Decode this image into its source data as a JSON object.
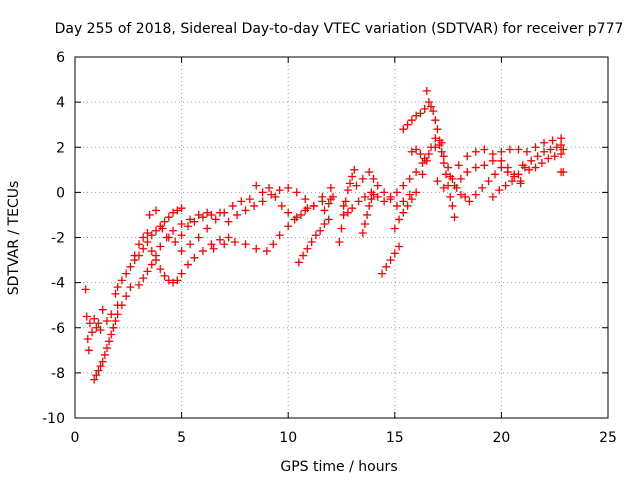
{
  "chart_data": {
    "type": "scatter",
    "title": "Day 255 of 2018, Sidereal Day-to-day VTEC variation (SDTVAR) for receiver p777",
    "xlabel": "GPS time / hours",
    "ylabel": "SDTVAR / TECUs",
    "xlim": [
      0,
      25
    ],
    "ylim": [
      -10,
      6
    ],
    "xticks": [
      0,
      5,
      10,
      15,
      20,
      25
    ],
    "yticks": [
      -10,
      -8,
      -6,
      -4,
      -2,
      0,
      2,
      4,
      6
    ],
    "grid": true,
    "legend": "none",
    "marker": "plus",
    "color": "#ff0000",
    "series": [
      {
        "points": [
          [
            0.5,
            -4.3
          ],
          [
            0.55,
            -5.5
          ],
          [
            0.6,
            -6.5
          ],
          [
            0.65,
            -7.0
          ],
          [
            0.7,
            -5.8
          ],
          [
            0.8,
            -6.2
          ],
          [
            0.9,
            -5.6
          ],
          [
            1.0,
            -6.0
          ],
          [
            1.1,
            -5.8
          ],
          [
            1.2,
            -6.1
          ],
          [
            1.3,
            -5.2
          ],
          [
            1.5,
            -5.7
          ],
          [
            1.7,
            -5.4
          ],
          [
            1.8,
            -6.0
          ],
          [
            2.0,
            -5.0
          ],
          [
            0.9,
            -8.3
          ],
          [
            1.0,
            -8.1
          ],
          [
            1.1,
            -7.9
          ],
          [
            1.2,
            -7.7
          ],
          [
            1.3,
            -7.5
          ],
          [
            1.4,
            -7.2
          ],
          [
            1.5,
            -6.9
          ],
          [
            1.6,
            -6.6
          ],
          [
            1.7,
            -6.3
          ],
          [
            1.8,
            -6.0
          ],
          [
            1.9,
            -5.7
          ],
          [
            2.0,
            -5.4
          ],
          [
            2.2,
            -5.0
          ],
          [
            2.4,
            -4.6
          ],
          [
            2.6,
            -4.2
          ],
          [
            1.9,
            -4.5
          ],
          [
            2.0,
            -4.2
          ],
          [
            2.2,
            -3.9
          ],
          [
            2.4,
            -3.6
          ],
          [
            2.6,
            -3.3
          ],
          [
            2.8,
            -3.0
          ],
          [
            3.0,
            -2.8
          ],
          [
            3.2,
            -2.5
          ],
          [
            3.4,
            -2.2
          ],
          [
            3.6,
            -1.9
          ],
          [
            3.8,
            -1.7
          ],
          [
            4.0,
            -1.5
          ],
          [
            4.2,
            -1.3
          ],
          [
            4.4,
            -1.1
          ],
          [
            4.6,
            -0.9
          ],
          [
            4.8,
            -0.8
          ],
          [
            5.0,
            -0.7
          ],
          [
            2.8,
            -2.8
          ],
          [
            3.0,
            -2.3
          ],
          [
            3.2,
            -2.0
          ],
          [
            3.4,
            -1.8
          ],
          [
            3.6,
            -2.6
          ],
          [
            3.8,
            -3.0
          ],
          [
            4.0,
            -3.4
          ],
          [
            4.2,
            -3.7
          ],
          [
            4.4,
            -3.9
          ],
          [
            4.6,
            -4.0
          ],
          [
            4.8,
            -3.9
          ],
          [
            5.0,
            -3.6
          ],
          [
            5.3,
            -3.2
          ],
          [
            5.6,
            -2.9
          ],
          [
            6.0,
            -2.6
          ],
          [
            6.4,
            -2.3
          ],
          [
            6.8,
            -2.1
          ],
          [
            7.2,
            -2.0
          ],
          [
            3.0,
            -4.1
          ],
          [
            3.2,
            -3.8
          ],
          [
            3.4,
            -3.5
          ],
          [
            3.6,
            -3.2
          ],
          [
            3.8,
            -2.8
          ],
          [
            4.0,
            -2.4
          ],
          [
            4.3,
            -2.0
          ],
          [
            4.6,
            -1.7
          ],
          [
            5.0,
            -1.4
          ],
          [
            5.4,
            -1.2
          ],
          [
            5.8,
            -1.0
          ],
          [
            6.2,
            -0.9
          ],
          [
            3.5,
            -1.0
          ],
          [
            3.8,
            -0.8
          ],
          [
            4.1,
            -1.6
          ],
          [
            4.4,
            -2.0
          ],
          [
            4.7,
            -2.2
          ],
          [
            5.0,
            -1.9
          ],
          [
            5.3,
            -1.5
          ],
          [
            5.6,
            -1.3
          ],
          [
            6.0,
            -1.1
          ],
          [
            6.4,
            -1.0
          ],
          [
            6.8,
            -0.9
          ],
          [
            5.0,
            -2.6
          ],
          [
            5.4,
            -2.3
          ],
          [
            5.8,
            -2.0
          ],
          [
            6.2,
            -1.6
          ],
          [
            6.6,
            -1.2
          ],
          [
            7.0,
            -0.9
          ],
          [
            7.4,
            -0.6
          ],
          [
            7.8,
            -0.4
          ],
          [
            8.2,
            -0.3
          ],
          [
            6.5,
            -2.5
          ],
          [
            7.0,
            -2.3
          ],
          [
            7.5,
            -2.2
          ],
          [
            8.0,
            -2.3
          ],
          [
            8.5,
            -2.5
          ],
          [
            9.0,
            -2.6
          ],
          [
            9.3,
            -2.3
          ],
          [
            9.6,
            -1.9
          ],
          [
            10.0,
            -1.5
          ],
          [
            10.4,
            -1.1
          ],
          [
            10.8,
            -0.8
          ],
          [
            11.2,
            -0.6
          ],
          [
            11.6,
            -0.4
          ],
          [
            12.0,
            -0.3
          ],
          [
            7.2,
            -1.3
          ],
          [
            7.6,
            -1.0
          ],
          [
            8.0,
            -0.8
          ],
          [
            8.4,
            -0.6
          ],
          [
            8.8,
            -0.4
          ],
          [
            9.2,
            -0.1
          ],
          [
            9.6,
            0.1
          ],
          [
            10.0,
            0.2
          ],
          [
            10.4,
            0.0
          ],
          [
            10.8,
            -0.3
          ],
          [
            11.2,
            -0.6
          ],
          [
            11.6,
            -0.2
          ],
          [
            12.0,
            0.2
          ],
          [
            8.5,
            0.3
          ],
          [
            8.8,
            0.0
          ],
          [
            9.1,
            0.2
          ],
          [
            9.4,
            -0.2
          ],
          [
            9.7,
            -0.6
          ],
          [
            10.0,
            -0.9
          ],
          [
            10.3,
            -1.2
          ],
          [
            10.6,
            -1.0
          ],
          [
            10.9,
            -0.7
          ],
          [
            10.5,
            -3.1
          ],
          [
            10.7,
            -2.8
          ],
          [
            10.9,
            -2.5
          ],
          [
            11.1,
            -2.2
          ],
          [
            11.3,
            -1.9
          ],
          [
            11.5,
            -1.7
          ],
          [
            11.7,
            -1.4
          ],
          [
            11.9,
            -1.2
          ],
          [
            11.7,
            -0.8
          ],
          [
            11.9,
            -0.5
          ],
          [
            12.1,
            -0.2
          ],
          [
            12.4,
            -2.2
          ],
          [
            12.5,
            -1.6
          ],
          [
            12.6,
            -1.0
          ],
          [
            12.7,
            -0.4
          ],
          [
            12.8,
            0.1
          ],
          [
            12.9,
            0.4
          ],
          [
            13.0,
            0.7
          ],
          [
            13.1,
            1.0
          ],
          [
            12.6,
            -0.6
          ],
          [
            12.8,
            -0.9
          ],
          [
            13.0,
            -0.7
          ],
          [
            13.3,
            -0.4
          ],
          [
            13.6,
            -0.2
          ],
          [
            13.9,
            0.0
          ],
          [
            14.2,
            -0.2
          ],
          [
            14.5,
            -0.4
          ],
          [
            14.8,
            -0.2
          ],
          [
            15.1,
            0.0
          ],
          [
            15.4,
            0.3
          ],
          [
            15.7,
            0.6
          ],
          [
            16.0,
            0.9
          ],
          [
            16.3,
            1.3
          ],
          [
            16.6,
            1.7
          ],
          [
            16.9,
            2.0
          ],
          [
            17.2,
            2.2
          ],
          [
            13.2,
            0.3
          ],
          [
            13.5,
            0.6
          ],
          [
            13.8,
            0.9
          ],
          [
            14.0,
            0.6
          ],
          [
            14.2,
            0.3
          ],
          [
            14.5,
            0.0
          ],
          [
            14.8,
            -0.3
          ],
          [
            15.1,
            -0.6
          ],
          [
            15.4,
            -0.4
          ],
          [
            15.7,
            -0.1
          ],
          [
            13.5,
            -1.8
          ],
          [
            13.6,
            -1.4
          ],
          [
            13.7,
            -1.0
          ],
          [
            13.8,
            -0.6
          ],
          [
            13.9,
            -0.3
          ],
          [
            14.0,
            -0.1
          ],
          [
            14.4,
            -3.6
          ],
          [
            14.6,
            -3.3
          ],
          [
            14.8,
            -3.0
          ],
          [
            15.0,
            -2.7
          ],
          [
            15.2,
            -2.4
          ],
          [
            15.0,
            -1.6
          ],
          [
            15.2,
            -1.2
          ],
          [
            15.4,
            -0.9
          ],
          [
            15.6,
            -0.6
          ],
          [
            15.8,
            -0.3
          ],
          [
            16.0,
            0.0
          ],
          [
            15.4,
            2.8
          ],
          [
            15.6,
            3.0
          ],
          [
            15.8,
            3.2
          ],
          [
            16.0,
            3.4
          ],
          [
            16.2,
            3.5
          ],
          [
            16.4,
            3.7
          ],
          [
            16.5,
            4.5
          ],
          [
            16.6,
            4.0
          ],
          [
            16.7,
            3.8
          ],
          [
            16.8,
            3.6
          ],
          [
            16.9,
            3.2
          ],
          [
            17.0,
            2.8
          ],
          [
            17.1,
            2.3
          ],
          [
            17.2,
            1.8
          ],
          [
            17.3,
            1.3
          ],
          [
            17.4,
            0.8
          ],
          [
            17.5,
            0.3
          ],
          [
            17.6,
            -0.2
          ],
          [
            17.7,
            -0.6
          ],
          [
            17.8,
            -1.1
          ],
          [
            16.3,
            0.8
          ],
          [
            16.5,
            1.4
          ],
          [
            16.7,
            2.0
          ],
          [
            16.9,
            2.4
          ],
          [
            17.1,
            2.1
          ],
          [
            17.3,
            1.6
          ],
          [
            17.5,
            1.1
          ],
          [
            17.7,
            0.6
          ],
          [
            17.9,
            0.2
          ],
          [
            18.1,
            -0.1
          ],
          [
            18.3,
            -0.2
          ],
          [
            15.8,
            1.8
          ],
          [
            16.0,
            1.9
          ],
          [
            16.2,
            1.7
          ],
          [
            16.4,
            1.5
          ],
          [
            17.0,
            0.5
          ],
          [
            17.3,
            0.2
          ],
          [
            17.6,
            0.7
          ],
          [
            18.0,
            1.2
          ],
          [
            18.4,
            1.6
          ],
          [
            18.8,
            1.8
          ],
          [
            19.2,
            1.9
          ],
          [
            19.6,
            1.7
          ],
          [
            20.0,
            1.4
          ],
          [
            20.3,
            1.1
          ],
          [
            20.6,
            0.8
          ],
          [
            20.9,
            0.4
          ],
          [
            17.8,
            0.3
          ],
          [
            18.1,
            0.6
          ],
          [
            18.4,
            0.9
          ],
          [
            18.8,
            1.1
          ],
          [
            19.2,
            1.2
          ],
          [
            19.6,
            1.4
          ],
          [
            20.0,
            1.8
          ],
          [
            20.4,
            1.9
          ],
          [
            20.8,
            1.9
          ],
          [
            21.2,
            1.8
          ],
          [
            21.6,
            2.0
          ],
          [
            22.0,
            2.2
          ],
          [
            22.4,
            2.3
          ],
          [
            22.8,
            2.4
          ],
          [
            18.5,
            -0.4
          ],
          [
            18.8,
            -0.1
          ],
          [
            19.1,
            0.2
          ],
          [
            19.4,
            0.5
          ],
          [
            19.7,
            0.8
          ],
          [
            20.0,
            1.1
          ],
          [
            20.3,
            0.9
          ],
          [
            20.6,
            0.7
          ],
          [
            20.9,
            0.5
          ],
          [
            19.6,
            -0.2
          ],
          [
            19.9,
            0.1
          ],
          [
            20.2,
            0.3
          ],
          [
            20.5,
            0.5
          ],
          [
            20.8,
            0.8
          ],
          [
            21.1,
            1.1
          ],
          [
            21.4,
            1.4
          ],
          [
            21.7,
            1.6
          ],
          [
            22.0,
            1.8
          ],
          [
            22.3,
            1.9
          ],
          [
            22.6,
            2.0
          ],
          [
            22.8,
            2.1
          ],
          [
            21.0,
            1.2
          ],
          [
            21.3,
            1.0
          ],
          [
            21.6,
            1.1
          ],
          [
            21.9,
            1.3
          ],
          [
            22.2,
            1.5
          ],
          [
            22.5,
            1.6
          ],
          [
            22.8,
            1.7
          ],
          [
            22.9,
            1.9
          ],
          [
            22.8,
            0.9
          ],
          [
            22.9,
            0.9
          ]
        ]
      }
    ]
  }
}
